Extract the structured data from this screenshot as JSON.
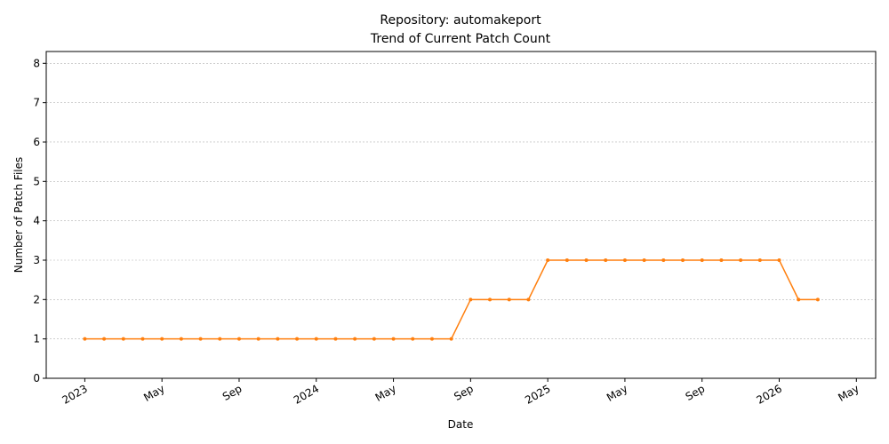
{
  "chart_data": {
    "type": "line",
    "title": "Repository: automakeport",
    "subtitle": "Trend of Current Patch Count",
    "x_label": "Date",
    "y_label": "Number of Patch Files",
    "x": [
      "2023-01",
      "2023-02",
      "2023-03",
      "2023-04",
      "2023-05",
      "2023-06",
      "2023-07",
      "2023-08",
      "2023-09",
      "2023-10",
      "2023-11",
      "2023-12",
      "2024-01",
      "2024-02",
      "2024-03",
      "2024-04",
      "2024-05",
      "2024-06",
      "2024-07",
      "2024-08",
      "2024-09",
      "2024-10",
      "2024-11",
      "2024-12",
      "2025-01",
      "2025-02",
      "2025-03",
      "2025-04",
      "2025-05",
      "2025-06",
      "2025-07",
      "2025-08",
      "2025-09",
      "2025-10",
      "2025-11",
      "2025-12",
      "2026-01",
      "2026-02",
      "2026-03"
    ],
    "series": [
      {
        "name": "Current Patch Count",
        "color": "#ff7f0e",
        "values": [
          1,
          1,
          1,
          1,
          1,
          1,
          1,
          1,
          1,
          1,
          1,
          1,
          1,
          1,
          1,
          1,
          1,
          1,
          1,
          1,
          2,
          2,
          2,
          2,
          3,
          3,
          3,
          3,
          3,
          3,
          3,
          3,
          3,
          3,
          3,
          3,
          3,
          2,
          2
        ]
      }
    ],
    "xlim": [
      "2022-11",
      "2026-06"
    ],
    "xticks": [
      {
        "value": "2023-01",
        "label": "2023"
      },
      {
        "value": "2023-05",
        "label": "May"
      },
      {
        "value": "2023-09",
        "label": "Sep"
      },
      {
        "value": "2024-01",
        "label": "2024"
      },
      {
        "value": "2024-05",
        "label": "May"
      },
      {
        "value": "2024-09",
        "label": "Sep"
      },
      {
        "value": "2025-01",
        "label": "2025"
      },
      {
        "value": "2025-05",
        "label": "May"
      },
      {
        "value": "2025-09",
        "label": "Sep"
      },
      {
        "value": "2026-01",
        "label": "2026"
      },
      {
        "value": "2026-05",
        "label": "May"
      }
    ],
    "ylim": [
      0,
      8.3
    ],
    "yticks": [
      0,
      1,
      2,
      3,
      4,
      5,
      6,
      7,
      8
    ],
    "grid": true
  }
}
